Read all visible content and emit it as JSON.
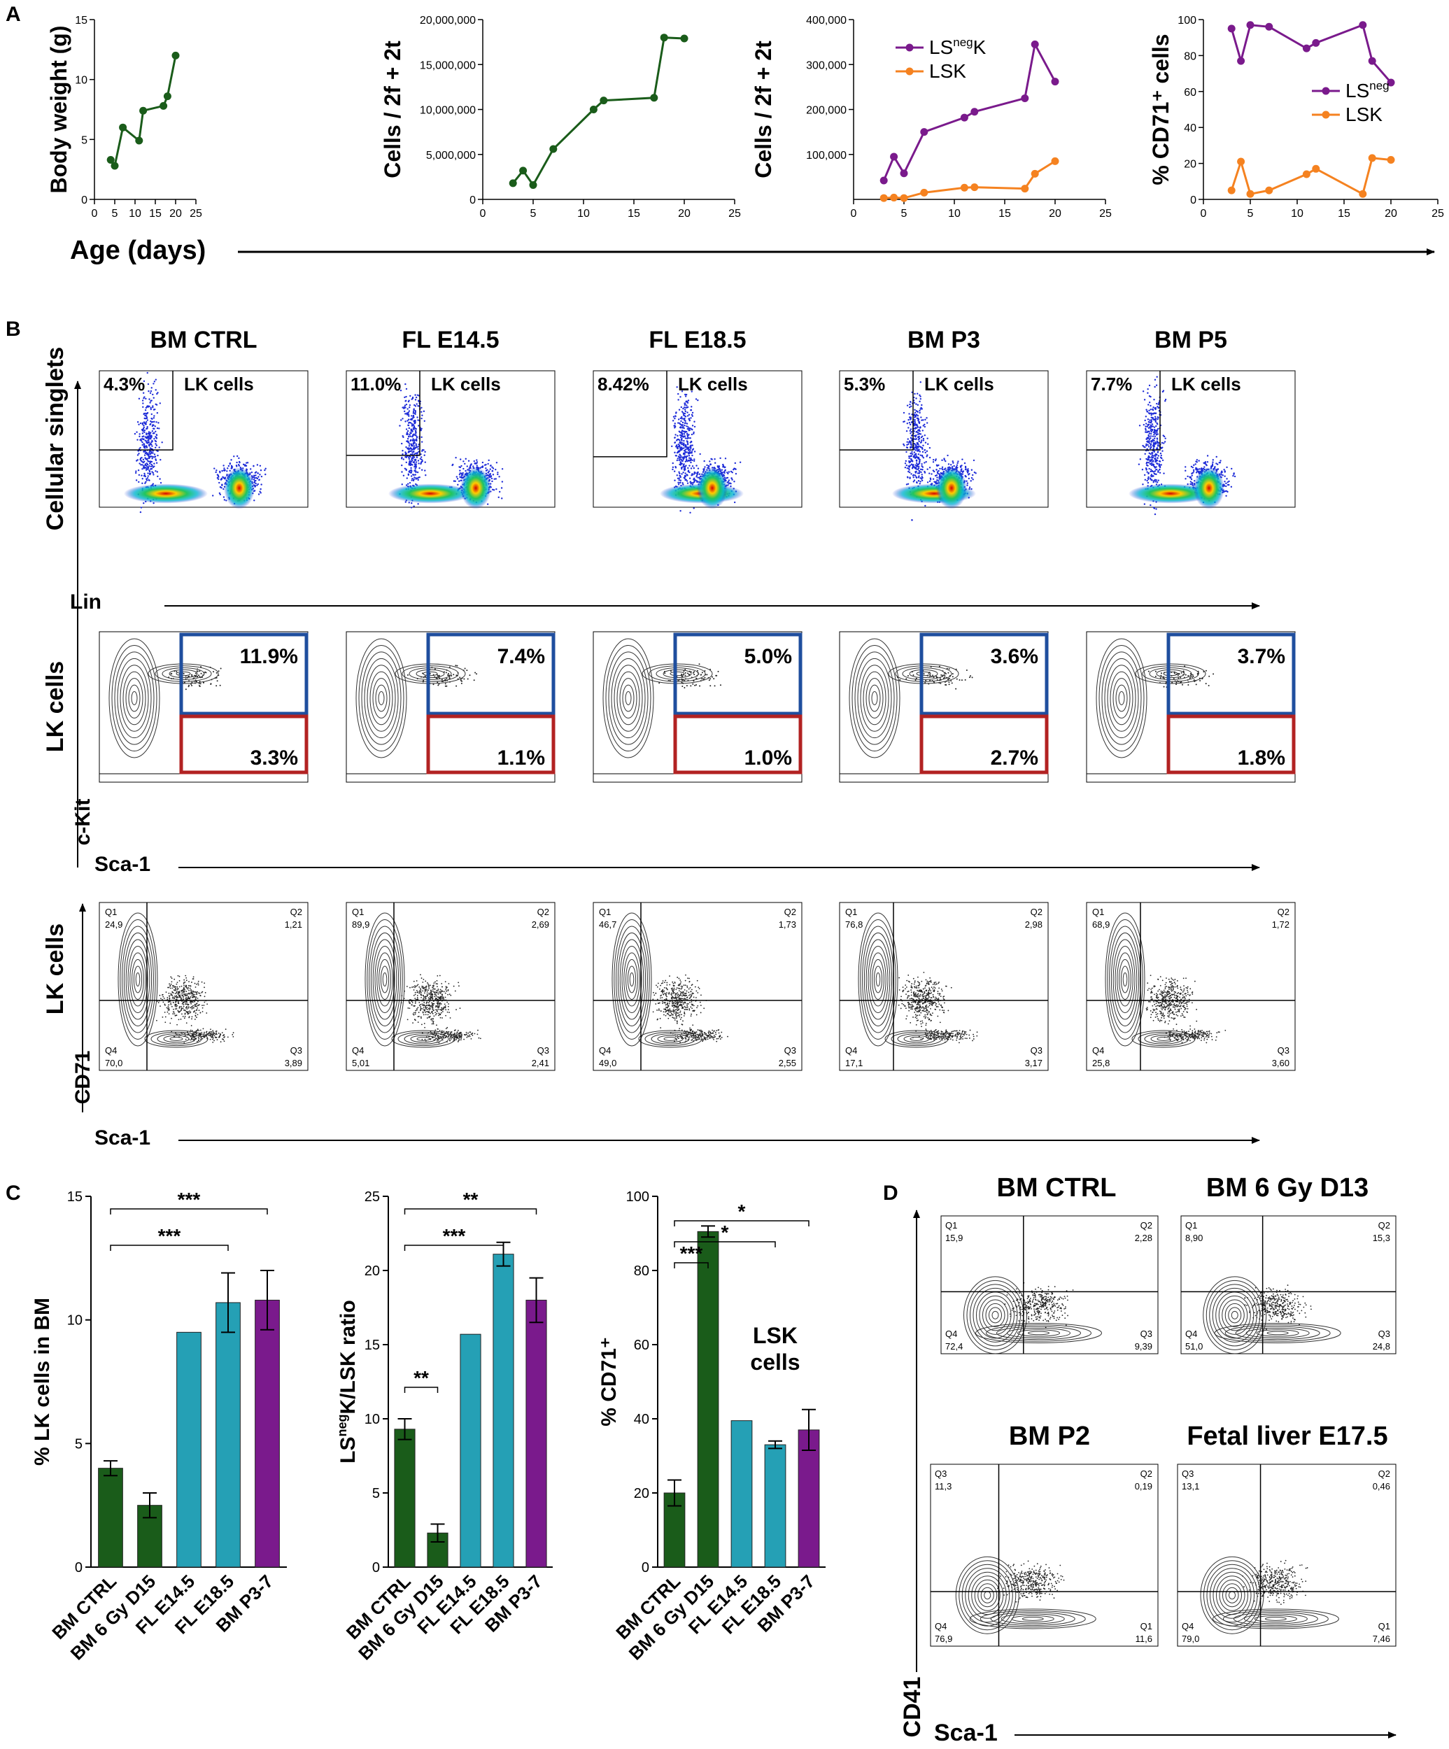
{
  "panel_labels": {
    "a": "A",
    "b": "B",
    "c": "C",
    "d": "D"
  },
  "colors": {
    "green": "#1a5c1a",
    "purple": "#7a1a8c",
    "orange": "#f58220",
    "teal": "#25a0b5",
    "blue": "#1f4e9e",
    "red": "#b22222"
  },
  "panelA": {
    "xlabel": "Age (days)",
    "charts": [
      {
        "type": "line",
        "ylabel": "Body weight (g)",
        "xlim": [
          0,
          25
        ],
        "ylim": [
          0,
          15
        ],
        "xticks": [
          "0",
          "5",
          "10",
          "15",
          "20",
          "25"
        ],
        "yticks": [
          "0",
          "5",
          "10",
          "15"
        ],
        "series": [
          {
            "name": "",
            "color": "#1a5c1a",
            "x": [
              4,
              5,
              7,
              11,
              12,
              17,
              18,
              20
            ],
            "y": [
              3.3,
              2.8,
              6.0,
              4.9,
              7.4,
              7.8,
              8.6,
              12.0
            ]
          }
        ]
      },
      {
        "type": "line",
        "ylabel": "Cells / 2f + 2t",
        "xlim": [
          0,
          25
        ],
        "ylim": [
          0,
          20000000
        ],
        "xticks": [
          "0",
          "5",
          "10",
          "15",
          "20",
          "25"
        ],
        "yticks": [
          "0",
          "5,000,000",
          "10,000,000",
          "15,000,000",
          "20,000,000"
        ],
        "series": [
          {
            "name": "",
            "color": "#1a5c1a",
            "x": [
              3,
              4,
              5,
              7,
              11,
              12,
              17,
              18,
              20
            ],
            "y": [
              1800000,
              3200000,
              1600000,
              5600000,
              10000000,
              11000000,
              11300000,
              18000000,
              17900000
            ]
          }
        ]
      },
      {
        "type": "line",
        "ylabel": "Cells / 2f + 2t",
        "xlim": [
          0,
          25
        ],
        "ylim": [
          0,
          400000
        ],
        "xticks": [
          "0",
          "5",
          "10",
          "15",
          "20",
          "25"
        ],
        "yticks": [
          "100,000",
          "200,000",
          "300,000",
          "400,000"
        ],
        "legend": [
          {
            "main": "LS",
            "sup": "neg",
            "tail": "K",
            "color": "#7a1a8c"
          },
          {
            "main": "LSK",
            "sup": "",
            "tail": "",
            "color": "#f58220"
          }
        ],
        "series": [
          {
            "name": "LSnegK",
            "color": "#7a1a8c",
            "x": [
              3,
              4,
              5,
              7,
              11,
              12,
              17,
              18,
              20
            ],
            "y": [
              42000,
              95000,
              58000,
              150000,
              182000,
              195000,
              225000,
              345000,
              262000
            ]
          },
          {
            "name": "LSK",
            "color": "#f58220",
            "x": [
              3,
              4,
              5,
              7,
              11,
              12,
              17,
              18,
              20
            ],
            "y": [
              3000,
              4000,
              3000,
              15000,
              26000,
              27000,
              24000,
              57000,
              85000
            ]
          }
        ]
      },
      {
        "type": "line",
        "ylabel": "% CD71⁺ cells",
        "xlim": [
          0,
          25
        ],
        "ylim": [
          0,
          100
        ],
        "xticks": [
          "0",
          "5",
          "10",
          "15",
          "20",
          "25"
        ],
        "yticks": [
          "0",
          "20",
          "40",
          "60",
          "80",
          "100"
        ],
        "legend": [
          {
            "main": "LS",
            "sup": "neg",
            "tail": "",
            "color": "#7a1a8c"
          },
          {
            "main": "LSK",
            "sup": "",
            "tail": "",
            "color": "#f58220"
          }
        ],
        "series": [
          {
            "name": "LSneg",
            "color": "#7a1a8c",
            "x": [
              3,
              4,
              5,
              7,
              11,
              12,
              17,
              18,
              20
            ],
            "y": [
              95,
              77,
              97,
              96,
              84,
              87,
              97,
              77,
              65
            ]
          },
          {
            "name": "LSK",
            "color": "#f58220",
            "x": [
              3,
              4,
              5,
              7,
              11,
              12,
              17,
              18,
              20
            ],
            "y": [
              5,
              21,
              3,
              5,
              14,
              17,
              3,
              23,
              22
            ]
          }
        ]
      }
    ]
  },
  "panelB": {
    "columns": [
      "BM CTRL",
      "FL E14.5",
      "FL E18.5",
      "BM P3",
      "BM P5"
    ],
    "row1": {
      "ylabel": "Cellular singlets",
      "xlabel": "Lin",
      "gate_label": "LK cells",
      "pcts": [
        "4.3%",
        "11.0%",
        "8.42%",
        "5.3%",
        "7.7%"
      ]
    },
    "row2": {
      "ylabel": "LK cells",
      "ylabel2": "c-Kit",
      "xlabel": "Sca-1",
      "blue_pcts": [
        "11.9%",
        "7.4%",
        "5.0%",
        "3.6%",
        "3.7%"
      ],
      "red_pcts": [
        "3.3%",
        "1.1%",
        "1.0%",
        "2.7%",
        "1.8%"
      ]
    },
    "row3": {
      "ylabel": "LK cells",
      "ylabel2": "CD71",
      "xlabel": "Sca-1",
      "q_names": [
        "Q1",
        "Q2",
        "Q3",
        "Q4"
      ],
      "quads": [
        {
          "q1": "24,9",
          "q2": "1,21",
          "q3": "3,89",
          "q4": "70,0"
        },
        {
          "q1": "89,9",
          "q2": "2,69",
          "q3": "2,41",
          "q4": "5,01"
        },
        {
          "q1": "46,7",
          "q2": "1,73",
          "q3": "2,55",
          "q4": "49,0"
        },
        {
          "q1": "76,8",
          "q2": "2,98",
          "q3": "3,17",
          "q4": "17,1"
        },
        {
          "q1": "68,9",
          "q2": "1,72",
          "q3": "3,60",
          "q4": "25,8"
        }
      ]
    }
  },
  "panelC": {
    "categories": [
      "BM CTRL",
      "BM 6 Gy D15",
      "FL E14.5",
      "FL E18.5",
      "BM P3-7"
    ],
    "bar_colors": [
      "#1a5c1a",
      "#1a5c1a",
      "#25a0b5",
      "#25a0b5",
      "#7a1a8c"
    ],
    "charts": [
      {
        "type": "bar",
        "ylabel": "% LK cells in BM",
        "ylim": [
          0,
          15
        ],
        "yticks": [
          "0",
          "5",
          "10",
          "15"
        ],
        "values": [
          4.0,
          2.5,
          9.5,
          10.7,
          10.8
        ],
        "errors": [
          0.3,
          0.5,
          0,
          1.2,
          1.2
        ],
        "sig": [
          {
            "from": 0,
            "to": 4,
            "label": "***"
          },
          {
            "from": 0,
            "to": 3,
            "label": "***"
          }
        ]
      },
      {
        "type": "bar",
        "ylabel_main": "LS",
        "ylabel_sup": "neg",
        "ylabel_tail": "K/LSK ratio",
        "ylim": [
          0,
          25
        ],
        "yticks": [
          "0",
          "5",
          "10",
          "15",
          "20",
          "25"
        ],
        "values": [
          9.3,
          2.3,
          15.7,
          21.1,
          18.0
        ],
        "errors": [
          0.7,
          0.6,
          0,
          0.8,
          1.5
        ],
        "sig": [
          {
            "from": 0,
            "to": 4,
            "label": "**"
          },
          {
            "from": 0,
            "to": 3,
            "label": "***"
          },
          {
            "from": 0,
            "to": 1,
            "label": "**"
          }
        ]
      },
      {
        "type": "bar",
        "ylabel": "% CD71⁺",
        "ylim": [
          0,
          100
        ],
        "yticks": [
          "0",
          "20",
          "40",
          "60",
          "80",
          "100"
        ],
        "values": [
          20,
          90.5,
          39.5,
          33,
          37
        ],
        "errors": [
          3.5,
          1.5,
          0,
          1,
          5.5
        ],
        "annotation": [
          "LSK",
          "cells"
        ],
        "sig": [
          {
            "from": 0,
            "to": 4,
            "label": "*"
          },
          {
            "from": 0,
            "to": 3,
            "label": "*"
          },
          {
            "from": 0,
            "to": 1,
            "label": "***"
          }
        ]
      }
    ]
  },
  "panelD": {
    "titles": [
      "BM CTRL",
      "BM 6 Gy D13",
      "BM P2",
      "Fetal liver E17.5"
    ],
    "ylabel": "CD41",
    "xlabel": "Sca-1",
    "quads": [
      {
        "tl_name": "Q1",
        "tl": "15,9",
        "tr_name": "Q2",
        "tr": "2,28",
        "bl_name": "Q4",
        "bl": "72,4",
        "br_name": "Q3",
        "br": "9,39"
      },
      {
        "tl_name": "Q1",
        "tl": "8,90",
        "tr_name": "Q2",
        "tr": "15,3",
        "bl_name": "Q4",
        "bl": "51,0",
        "br_name": "Q3",
        "br": "24,8"
      },
      {
        "tl_name": "Q3",
        "tl": "11,3",
        "tr_name": "Q2",
        "tr": "0,19",
        "bl_name": "Q4",
        "bl": "76,9",
        "br_name": "Q1",
        "br": "11,6"
      },
      {
        "tl_name": "Q3",
        "tl": "13,1",
        "tr_name": "Q2",
        "tr": "0,46",
        "bl_name": "Q4",
        "bl": "79,0",
        "br_name": "Q1",
        "br": "7,46"
      }
    ]
  }
}
